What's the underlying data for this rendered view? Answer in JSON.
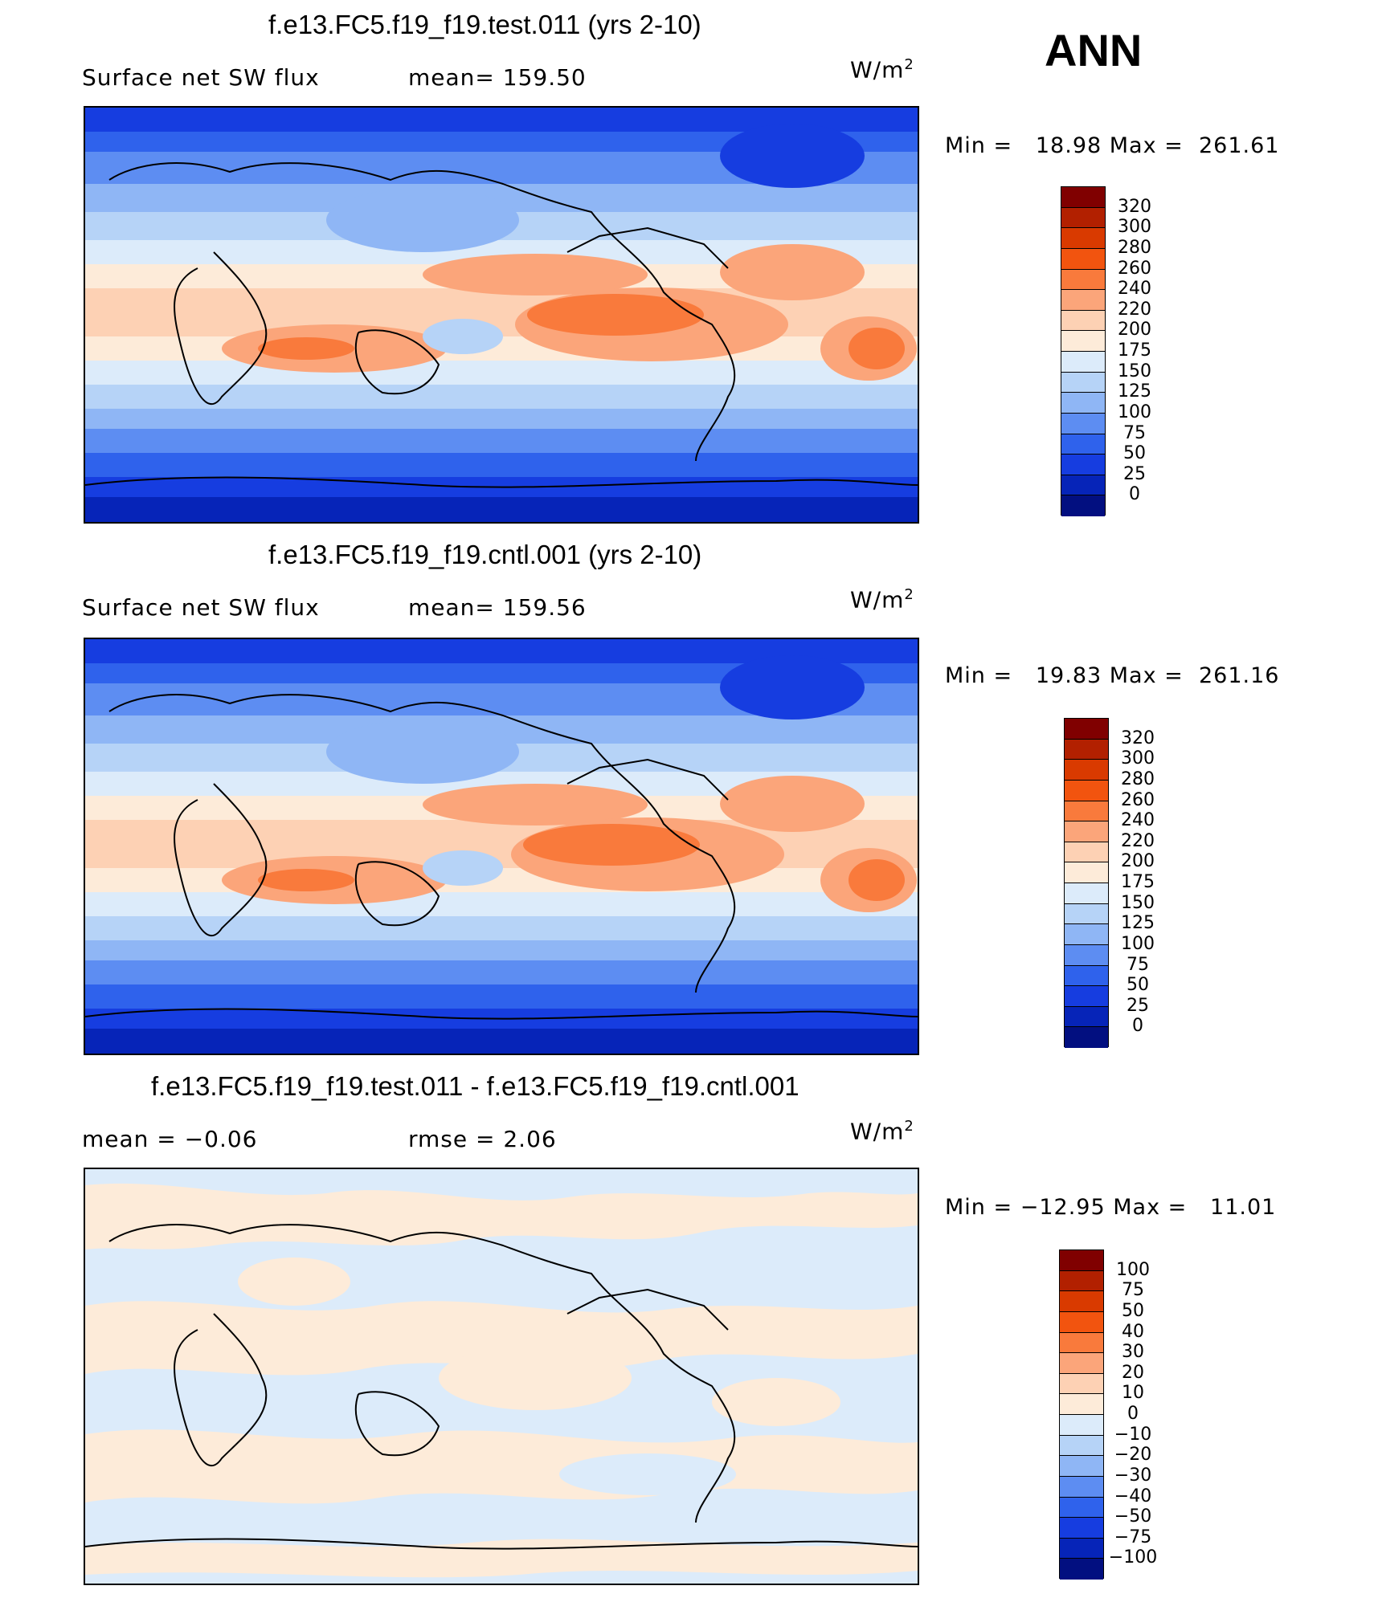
{
  "season": "ANN",
  "units_base": "W/m",
  "units_exp": "2",
  "panels": [
    {
      "title": "f.e13.FC5.f19_f19.test.011 (yrs 2-10)",
      "variable": "Surface net SW flux",
      "stat_left": "",
      "stat_right": "mean=  159.50",
      "min_label": "Min  =",
      "min_value": "18.98",
      "max_label": "Max  =",
      "max_value": "261.61",
      "scale": "abs"
    },
    {
      "title": "f.e13.FC5.f19_f19.cntl.001 (yrs 2-10)",
      "variable": "Surface net SW flux",
      "stat_left": "",
      "stat_right": "mean=  159.56",
      "min_label": "Min  =",
      "min_value": "19.83",
      "max_label": "Max  =",
      "max_value": "261.16",
      "scale": "abs"
    },
    {
      "title": "f.e13.FC5.f19_f19.test.011 - f.e13.FC5.f19_f19.cntl.001",
      "variable": "",
      "stat_left": "mean  =    −0.06",
      "stat_right": "rmse  =     2.06",
      "min_label": "Min  =",
      "min_value": "−12.95",
      "max_label": "Max  =",
      "max_value": "11.01",
      "scale": "diff"
    }
  ],
  "colorbars": {
    "abs": {
      "ticks": [
        "320",
        "300",
        "280",
        "260",
        "240",
        "220",
        "200",
        "175",
        "150",
        "125",
        "100",
        "75",
        "50",
        "25",
        "0"
      ],
      "colors": [
        "#800000",
        "#b22000",
        "#d93a00",
        "#f2540f",
        "#f97a3c",
        "#fba57a",
        "#fdd1b4",
        "#fdebd9",
        "#dcebfa",
        "#b6d3f7",
        "#8fb6f5",
        "#5d8df2",
        "#2f62ec",
        "#163de0",
        "#0624b8",
        "#020f80"
      ]
    },
    "diff": {
      "ticks": [
        "100",
        "75",
        "50",
        "40",
        "30",
        "20",
        "10",
        "0",
        "−10",
        "−20",
        "−30",
        "−40",
        "−50",
        "−75",
        "−100"
      ],
      "colors": [
        "#800000",
        "#b22000",
        "#d93a00",
        "#f2540f",
        "#f97a3c",
        "#fba57a",
        "#fdd1b4",
        "#fdebd9",
        "#dcebfa",
        "#b6d3f7",
        "#8fb6f5",
        "#5d8df2",
        "#2f62ec",
        "#163de0",
        "#0624b8",
        "#020f80"
      ]
    }
  }
}
